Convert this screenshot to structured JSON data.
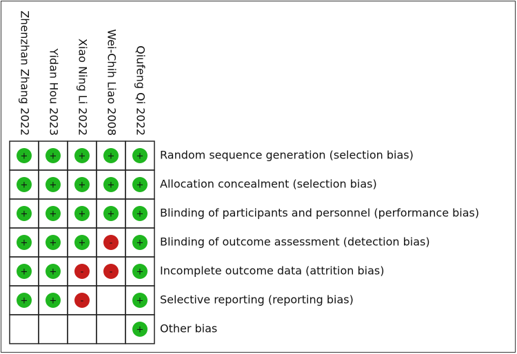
{
  "studies": [
    "Zhenzhan Zhang 2022",
    "Yidan Hou 2023",
    "Xiao Ning Li 2022",
    "Wei-Chih Liao 2008",
    "Qiufeng Qi 2022"
  ],
  "domains": [
    "Random sequence generation (selection bias)",
    "Allocation concealment (selection bias)",
    "Blinding of participants and personnel (performance bias)",
    "Blinding of outcome assessment (detection bias)",
    "Incomplete outcome data (attrition bias)",
    "Selective reporting (reporting bias)",
    "Other bias"
  ],
  "judgments": [
    [
      "+",
      "+",
      "+",
      "+",
      "+"
    ],
    [
      "+",
      "+",
      "+",
      "+",
      "+"
    ],
    [
      "+",
      "+",
      "+",
      "+",
      "+"
    ],
    [
      "+",
      "+",
      "+",
      "-",
      "+"
    ],
    [
      "+",
      "+",
      "-",
      "-",
      "+"
    ],
    [
      "+",
      "+",
      "-",
      null,
      "+"
    ],
    [
      null,
      null,
      null,
      null,
      "+"
    ]
  ]
}
